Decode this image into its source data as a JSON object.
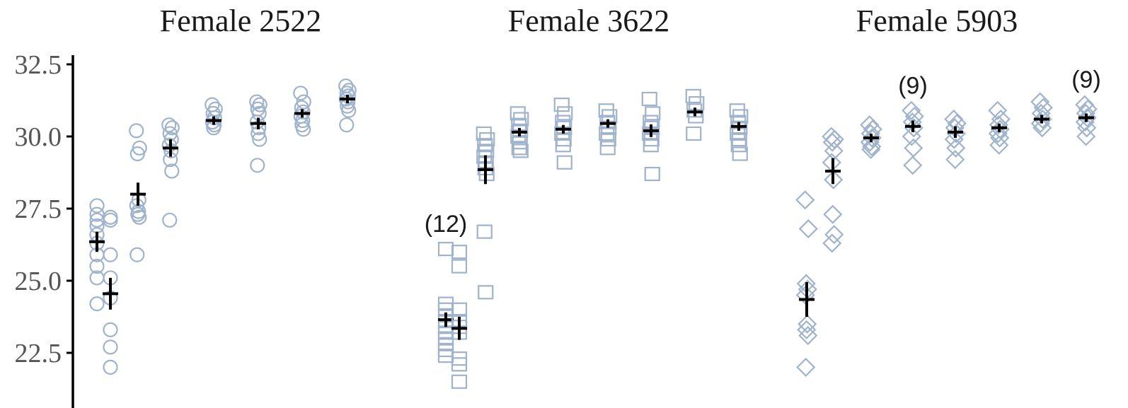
{
  "colors": {
    "points": "#9fb3cc",
    "means": "#000000",
    "axis": "#000000",
    "tick_text": "#555555"
  },
  "chart_data": {
    "type": "scatter",
    "ylim": [
      21,
      33
    ],
    "yticks": [
      22.5,
      25.0,
      27.5,
      30.0,
      32.5
    ],
    "ytick_labels": [
      "22.5",
      "25.0",
      "27.5",
      "30.0",
      "32.5"
    ],
    "grid": false,
    "panels": [
      {
        "title": "Female 2522",
        "marker": "circle",
        "groups": [
          {
            "values": [
              27.6,
              27.3,
              27.1,
              26.9,
              26.6,
              26.3,
              25.9,
              25.5,
              25.1,
              24.2
            ],
            "mean": 26.35,
            "err": 0.35
          },
          {
            "values": [
              27.2,
              27.1,
              25.9,
              25.1,
              24.4,
              23.3,
              22.7,
              22.0
            ],
            "mean": 24.55,
            "err": 0.55
          },
          {
            "values": [
              30.2,
              29.6,
              29.4,
              27.8,
              27.6,
              27.4,
              27.3,
              27.2,
              25.9
            ],
            "mean": 28.0,
            "err": 0.4
          },
          {
            "values": [
              30.4,
              30.3,
              30.1,
              29.9,
              29.7,
              29.5,
              29.2,
              28.8,
              27.1
            ],
            "mean": 29.6,
            "err": 0.3
          },
          {
            "values": [
              31.1,
              30.95,
              30.8,
              30.65,
              30.5,
              30.4,
              30.3
            ],
            "mean": 30.55,
            "err": 0.1
          },
          {
            "values": [
              31.2,
              31.1,
              30.95,
              30.8,
              30.5,
              30.3,
              30.1,
              29.9,
              29.0
            ],
            "mean": 30.45,
            "err": 0.2
          },
          {
            "values": [
              31.5,
              31.2,
              31.0,
              30.85,
              30.7,
              30.55,
              30.4,
              30.25
            ],
            "mean": 30.8,
            "err": 0.12
          },
          {
            "values": [
              31.75,
              31.6,
              31.5,
              31.4,
              31.3,
              31.2,
              31.05,
              30.9,
              30.4
            ],
            "mean": 31.3,
            "err": 0.12
          }
        ],
        "annotations": []
      },
      {
        "title": "Female 3622",
        "marker": "square",
        "groups": [
          {
            "values": [
              26.1,
              24.2,
              24.0,
              23.8,
              23.6,
              23.4,
              23.2,
              23.0,
              22.8,
              22.6,
              22.4
            ],
            "mean": 23.65,
            "err": 0.25
          },
          {
            "values": [
              26.0,
              25.5,
              24.0,
              23.6,
              23.4,
              23.2,
              22.3,
              22.1,
              21.5
            ],
            "mean": 23.35,
            "err": 0.4
          },
          {
            "values": [
              30.1,
              29.9,
              29.7,
              29.5,
              29.3,
              29.1,
              28.9,
              28.7,
              26.7,
              24.6
            ],
            "mean": 28.85,
            "err": 0.5
          },
          {
            "values": [
              30.8,
              30.6,
              30.4,
              30.2,
              30.0,
              29.8,
              29.6,
              29.5
            ],
            "mean": 30.15,
            "err": 0.1
          },
          {
            "values": [
              31.1,
              30.8,
              30.5,
              30.3,
              30.1,
              29.9,
              29.7,
              29.1
            ],
            "mean": 30.25,
            "err": 0.15
          },
          {
            "values": [
              30.9,
              30.7,
              30.5,
              30.3,
              30.1,
              29.9,
              29.6
            ],
            "mean": 30.45,
            "err": 0.12
          },
          {
            "values": [
              31.3,
              30.8,
              30.5,
              30.3,
              30.1,
              29.9,
              29.7,
              28.7
            ],
            "mean": 30.2,
            "err": 0.22
          },
          {
            "values": [
              31.4,
              31.15,
              30.9,
              30.7,
              30.1
            ],
            "mean": 30.85,
            "err": 0.15
          },
          {
            "values": [
              30.9,
              30.7,
              30.5,
              30.3,
              30.1,
              29.9,
              29.7,
              29.4
            ],
            "mean": 30.35,
            "err": 0.15
          }
        ],
        "annotations": [
          {
            "text": "(12)",
            "group": 0
          }
        ]
      },
      {
        "title": "Female 5903",
        "marker": "diamond",
        "groups": [
          {
            "values": [
              27.8,
              26.8,
              24.9,
              24.7,
              24.5,
              23.5,
              23.3,
              23.1,
              22.0
            ],
            "mean": 24.35,
            "err": 0.6
          },
          {
            "values": [
              30.0,
              29.9,
              29.8,
              29.5,
              29.1,
              28.5,
              27.3,
              26.6,
              26.3
            ],
            "mean": 28.8,
            "err": 0.45
          },
          {
            "values": [
              30.4,
              30.25,
              30.1,
              29.95,
              29.8,
              29.65,
              29.55
            ],
            "mean": 29.95,
            "err": 0.08
          },
          {
            "values": [
              30.9,
              30.7,
              30.5,
              30.3,
              30.0,
              29.6,
              29.0
            ],
            "mean": 30.35,
            "err": 0.2
          },
          {
            "values": [
              30.6,
              30.45,
              30.3,
              30.1,
              29.9,
              29.6,
              29.2
            ],
            "mean": 30.15,
            "err": 0.2
          },
          {
            "values": [
              30.9,
              30.6,
              30.4,
              30.25,
              30.1,
              29.95,
              29.7
            ],
            "mean": 30.3,
            "err": 0.12
          },
          {
            "values": [
              31.2,
              31.0,
              30.8,
              30.6,
              30.45,
              30.3
            ],
            "mean": 30.6,
            "err": 0.12
          },
          {
            "values": [
              31.1,
              30.95,
              30.8,
              30.65,
              30.5,
              30.3,
              30.0
            ],
            "mean": 30.65,
            "err": 0.12
          }
        ],
        "annotations": [
          {
            "text": "(9)",
            "group": 3
          },
          {
            "text": "(9)",
            "group": 7
          }
        ]
      }
    ]
  }
}
